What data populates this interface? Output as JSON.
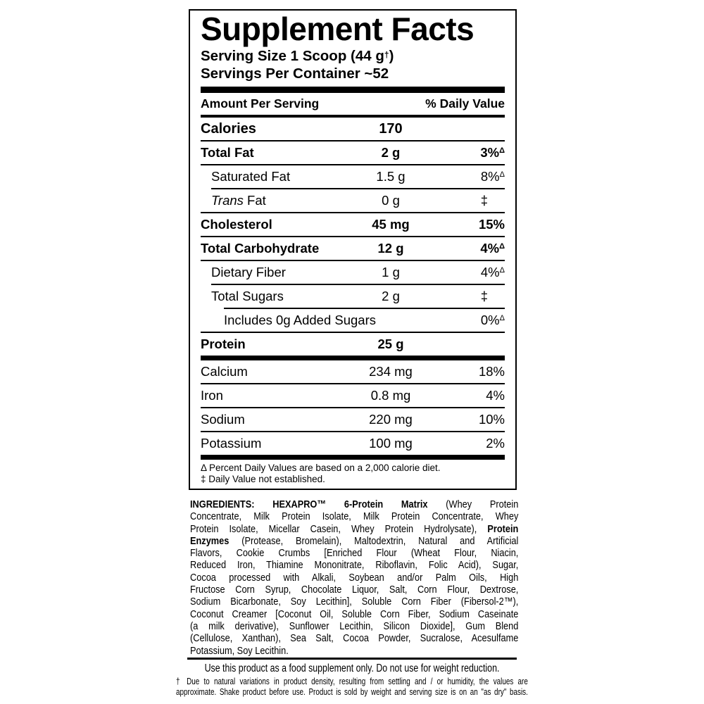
{
  "colors": {
    "text": "#000000",
    "background": "#ffffff"
  },
  "panel": {
    "title": "Supplement Facts",
    "serving_size_main": "Serving Size 1 Scoop (44 g",
    "serving_size_sup": "†",
    "serving_size_close": ")",
    "servings_per_container": "Servings Per Container ~52",
    "header": {
      "amount": "Amount Per Serving",
      "dv": "% Daily Value"
    },
    "rows": [
      {
        "label": "Calories",
        "bold": true,
        "cal": true,
        "indent": 0,
        "amount": "170",
        "amount_bold": true,
        "dv": "",
        "dv_sup": "",
        "hairline": null
      },
      {
        "label": "Total Fat",
        "bold": true,
        "indent": 0,
        "amount": "2 g",
        "amount_bold": true,
        "dv": "3%",
        "dv_sup": "Δ",
        "dv_bold": true,
        "hairline": 0
      },
      {
        "label": "Saturated Fat",
        "bold": false,
        "indent": 15,
        "amount": "1.5 g",
        "dv": "8%",
        "dv_sup": "Δ",
        "hairline": 0
      },
      {
        "label_italic": "Trans",
        "label": " Fat",
        "bold": false,
        "indent": 15,
        "amount": "0 g",
        "dv": "‡",
        "dv_est": true,
        "hairline": 15
      },
      {
        "label": "Cholesterol",
        "bold": true,
        "indent": 0,
        "amount": "45 mg",
        "amount_bold": true,
        "dv": "15%",
        "dv_bold": true,
        "hairline": 0
      },
      {
        "label": "Total Carbohydrate",
        "bold": true,
        "indent": 0,
        "amount": "12 g",
        "amount_bold": true,
        "dv": "4%",
        "dv_sup": "Δ",
        "dv_bold": true,
        "hairline": 0
      },
      {
        "label": "Dietary Fiber",
        "bold": false,
        "indent": 15,
        "amount": "1 g",
        "dv": "4%",
        "dv_sup": "Δ",
        "hairline": 0
      },
      {
        "label": "Total Sugars",
        "bold": false,
        "indent": 15,
        "amount": "2 g",
        "dv": "‡",
        "dv_est": true,
        "hairline": 15
      },
      {
        "label": "Includes 0g Added Sugars",
        "bold": false,
        "indent": 33,
        "amount": "",
        "dv": "0%",
        "dv_sup": "Δ",
        "hairline": 33
      },
      {
        "label": "Protein",
        "bold": true,
        "indent": 0,
        "amount": "25 g",
        "amount_bold": true,
        "dv": "",
        "hairline": 0
      }
    ],
    "mineral_rows": [
      {
        "label": "Calcium",
        "indent": 0,
        "amount": "234 mg",
        "dv": "18%",
        "hairline": null
      },
      {
        "label": "Iron",
        "indent": 0,
        "amount": "0.8 mg",
        "dv": "4%",
        "hairline": 0
      },
      {
        "label": "Sodium",
        "indent": 0,
        "amount": "220 mg",
        "dv": "10%",
        "hairline": 0
      },
      {
        "label": "Potassium",
        "indent": 0,
        "amount": "100 mg",
        "dv": "2%",
        "hairline": 0
      }
    ],
    "footnotes": [
      "Δ Percent Daily Values are based on a 2,000 calorie diet.",
      "‡ Daily Value not established."
    ]
  },
  "ingredients": {
    "lines": [
      {
        "last": false,
        "segments": [
          {
            "t": "INGREDIENTS: HEXAPRO™ 6-Protein Matrix",
            "b": true
          },
          {
            "t": " (Whey Protein",
            "b": false
          }
        ]
      },
      {
        "last": false,
        "segments": [
          {
            "t": "Concentrate, Milk Protein Isolate, Milk Protein Concentrate, Whey",
            "b": false
          }
        ]
      },
      {
        "last": false,
        "segments": [
          {
            "t": "Protein Isolate, Micellar Casein, Whey Protein Hydrolysate), ",
            "b": false
          },
          {
            "t": "Protein",
            "b": true
          }
        ]
      },
      {
        "last": false,
        "segments": [
          {
            "t": "Enzymes",
            "b": true
          },
          {
            "t": " (Protease, Bromelain), Maltodextrin, Natural and Artificial",
            "b": false
          }
        ]
      },
      {
        "last": false,
        "segments": [
          {
            "t": "Flavors, Cookie Crumbs [Enriched Flour (Wheat Flour, Niacin,",
            "b": false
          }
        ]
      },
      {
        "last": false,
        "segments": [
          {
            "t": "Reduced Iron, Thiamine Mononitrate, Riboflavin, Folic Acid), Sugar,",
            "b": false
          }
        ]
      },
      {
        "last": false,
        "segments": [
          {
            "t": "Cocoa processed with Alkali, Soybean and/or Palm Oils, High",
            "b": false
          }
        ]
      },
      {
        "last": false,
        "segments": [
          {
            "t": "Fructose Corn Syrup, Chocolate Liquor, Salt, Corn Flour, Dextrose,",
            "b": false
          }
        ]
      },
      {
        "last": false,
        "segments": [
          {
            "t": "Sodium Bicarbonate, Soy Lecithin], Soluble Corn Fiber (Fibersol-2™),",
            "b": false
          }
        ]
      },
      {
        "last": false,
        "segments": [
          {
            "t": "Coconut Creamer [Coconut Oil, Soluble Corn Fiber, Sodium Caseinate",
            "b": false
          }
        ]
      },
      {
        "last": false,
        "segments": [
          {
            "t": "(a milk derivative), Sunflower Lecithin, Silicon Dioxide], Gum Blend",
            "b": false
          }
        ]
      },
      {
        "last": false,
        "segments": [
          {
            "t": "(Cellulose, Xanthan), Sea Salt, Cocoa Powder, Sucralose, Acesulfame",
            "b": false
          }
        ]
      },
      {
        "last": true,
        "segments": [
          {
            "t": "Potassium, Soy Lecithin.",
            "b": false
          }
        ]
      }
    ]
  },
  "bottom": {
    "supplement_note": "Use this product as a food supplement only. Do not use for weight reduction.",
    "dagger_note_lines": [
      "† Due to natural variations in product density, resulting from settling and / or humidity, the values are",
      "approximate. Shake product before use. Product is sold by weight and serving size is on an \"as dry\" basis."
    ]
  }
}
